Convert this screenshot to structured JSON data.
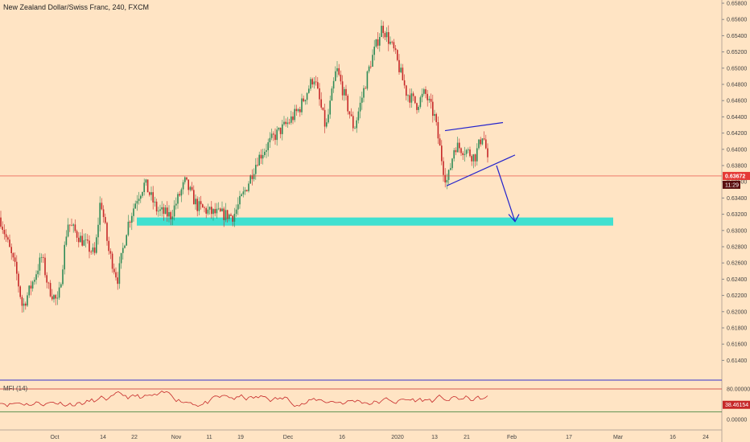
{
  "chart_title": "New Zealand Dollar/Swiss Franc, 240, FXCM",
  "price_axis_labels": [
    "0.65800",
    "0.65600",
    "0.65400",
    "0.65200",
    "0.65000",
    "0.64800",
    "0.64600",
    "0.64400",
    "0.64200",
    "0.64000",
    "0.63800",
    "0.63600",
    "0.63400",
    "0.63200",
    "0.63000",
    "0.62800",
    "0.62600",
    "0.62400",
    "0.62200",
    "0.62000",
    "0.61800",
    "0.61600",
    "0.61400"
  ],
  "current_price": "0.63672",
  "countdown": "11:29",
  "mfi": {
    "label": "MFI (14)",
    "axis_labels": [
      "80.00000",
      "0.00000"
    ],
    "current_value": "38.46154",
    "upper_band": 80,
    "lower_band": 20
  },
  "time_axis_labels": [
    "Oct",
    "14",
    "22",
    "Nov",
    "11",
    "19",
    "Dec",
    "16",
    "2020",
    "13",
    "21",
    "Feb",
    "17",
    "Mar",
    "16",
    "24"
  ],
  "colors": {
    "background": "#ffe4c4",
    "up_candle": "#2e8b57",
    "down_candle": "#c62828",
    "price_line": "#e53935",
    "support_zone": "#40e0d0",
    "drawing": "#2222cc",
    "mfi_line": "#c62828",
    "mfi_upper": "#c62828",
    "mfi_lower": "#2e7d32"
  },
  "chart_data": {
    "type": "line",
    "title": "New Zealand Dollar/Swiss Franc, 240, FXCM",
    "ylim": [
      0.613,
      0.6585
    ],
    "x": [
      "Oct",
      "14",
      "22",
      "Nov",
      "11",
      "19",
      "Dec",
      "16",
      "2020",
      "13",
      "21",
      "Feb"
    ],
    "series": [
      {
        "values": [
          0.6316,
          0.6222,
          0.6285,
          0.6338,
          0.6322,
          0.6336,
          0.6435,
          0.6423,
          0.6552,
          0.6463,
          0.6398,
          0.6367
        ]
      }
    ],
    "support_zone": [
      0.6306,
      0.6316
    ],
    "rising_wedge_upper": [
      0.6423,
      0.6433
    ],
    "rising_wedge_lower": [
      0.6355,
      0.6393
    ]
  }
}
